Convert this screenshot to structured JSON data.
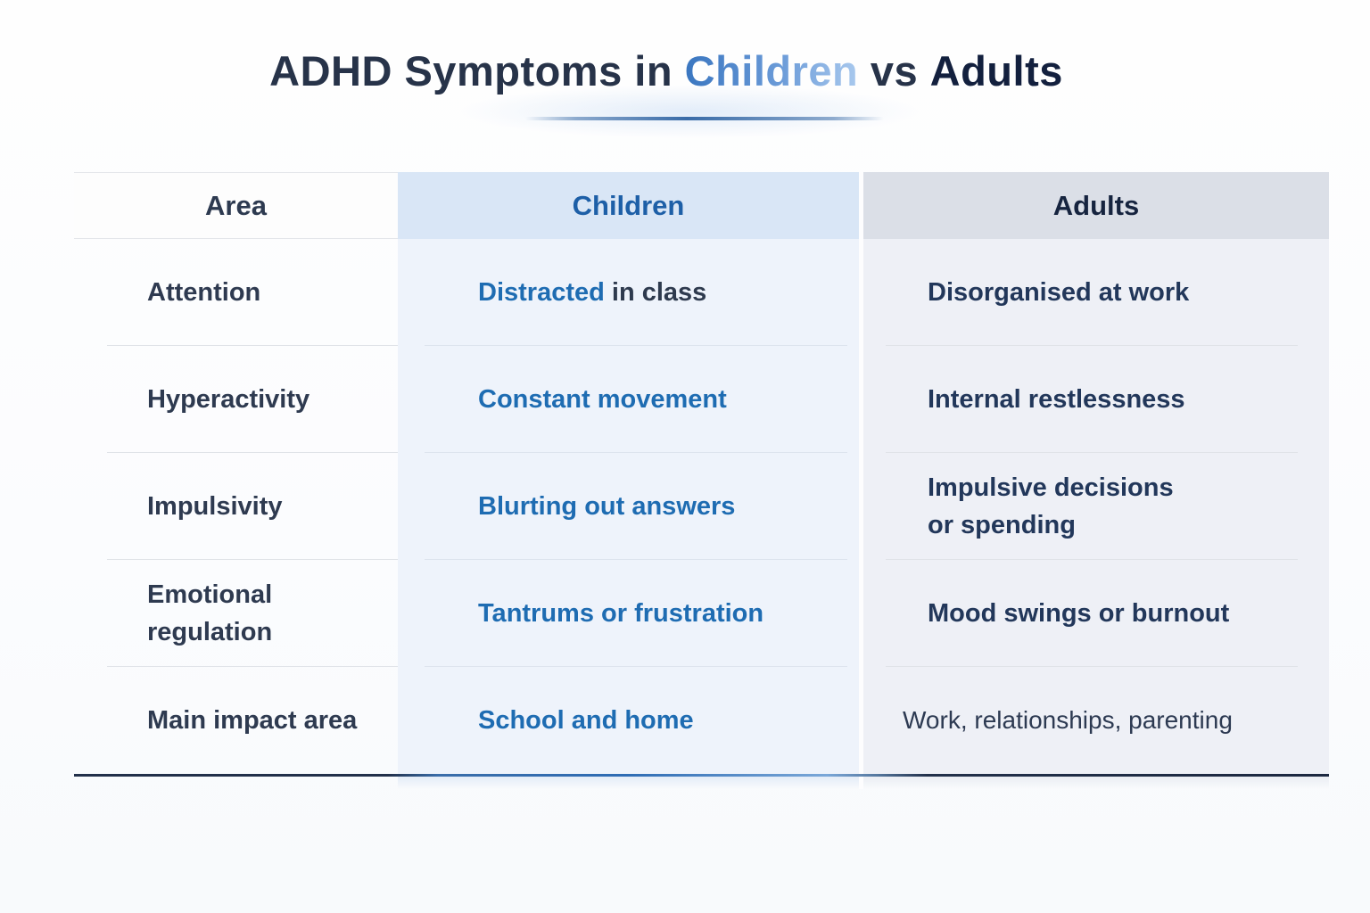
{
  "title": {
    "prefix": "ADHD Symptoms in",
    "children_word": "Children",
    "vs_word": "vs",
    "adults_word": "Adults"
  },
  "table": {
    "headers": [
      "Area",
      "Children",
      "Adults"
    ],
    "rows": [
      {
        "area": "Attention",
        "children_highlight": "Distracted",
        "children_rest": " in class",
        "adults": "Disorganised at work"
      },
      {
        "area": "Hyperactivity",
        "children_highlight": "Constant movement",
        "children_rest": "",
        "adults": "Internal restlessness"
      },
      {
        "area": "Impulsivity",
        "children_highlight": "Blurting out answers",
        "children_rest": "",
        "adults": "Impulsive decisions\nor spending"
      },
      {
        "area": "Emotional regulation",
        "children_highlight": "Tantrums or frustration",
        "children_rest": "",
        "adults": "Mood swings or burnout"
      },
      {
        "area": "Main impact area",
        "children_highlight": "School and home",
        "children_rest": "",
        "adults": "Work, relationships, parenting"
      }
    ]
  },
  "colors": {
    "title_text": "#273349",
    "title_children_gradient_start": "#3a76c0",
    "title_children_gradient_end": "#a9c9ee",
    "title_adults": "#13203e",
    "header_area_text": "#2d3a50",
    "header_children_text": "#1d5fa7",
    "header_adults_text": "#16243f",
    "children_header_bg": "#d9e6f6",
    "adults_header_bg": "#dbdfe7",
    "children_body_bg": "#eef3fb",
    "adults_body_bg": "#eef0f6",
    "children_cell_text": "#1e6cb2",
    "children_cell_rest_text": "#2e3a4e",
    "adults_cell_text": "#22375a",
    "area_cell_text": "#2e3a50",
    "separator": "#e0e3e8",
    "bottom_line_dark": "#22304a",
    "bottom_line_blue": "#2e6cb4",
    "underline_blue": "#3a6ca8"
  }
}
